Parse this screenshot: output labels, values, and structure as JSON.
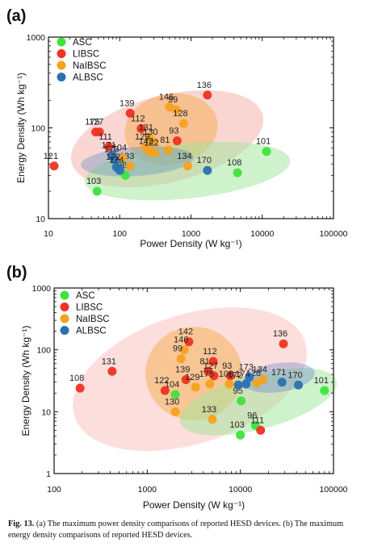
{
  "chart_data": [
    {
      "panel": "(a)",
      "type": "scatter",
      "xlabel": "Power Density (W kg⁻¹)",
      "ylabel": "Energy Density (Wh kg⁻¹)",
      "xscale": "log",
      "yscale": "log",
      "xlim": [
        10,
        100000
      ],
      "ylim": [
        10,
        1000
      ],
      "x_ticks": [
        "10",
        "100",
        "1000",
        "10000",
        "100000"
      ],
      "y_ticks": [
        "10",
        "100",
        "1000"
      ],
      "legend_position": "top-left",
      "series": [
        {
          "name": "ASC",
          "color": "#3ee23e",
          "points": [
            {
              "x": 11500,
              "y": 55,
              "label": "101"
            },
            {
              "x": 4500,
              "y": 32,
              "label": "108"
            },
            {
              "x": 48,
              "y": 20,
              "label": "103"
            },
            {
              "x": 120,
              "y": 30,
              "label": "96"
            }
          ]
        },
        {
          "name": "LIBSC",
          "color": "#ef3322",
          "points": [
            {
              "x": 1700,
              "y": 230,
              "label": "136"
            },
            {
              "x": 140,
              "y": 145,
              "label": "139"
            },
            {
              "x": 12,
              "y": 38,
              "label": "121"
            },
            {
              "x": 46,
              "y": 90,
              "label": "175"
            },
            {
              "x": 52,
              "y": 90,
              "label": "127"
            },
            {
              "x": 200,
              "y": 98,
              "label": "112"
            },
            {
              "x": 640,
              "y": 72,
              "label": "93"
            },
            {
              "x": 70,
              "y": 62,
              "label": "111"
            }
          ]
        },
        {
          "name": "NaIBSC",
          "color": "#f6a11e",
          "points": [
            {
              "x": 500,
              "y": 170,
              "label": "146"
            },
            {
              "x": 620,
              "y": 158,
              "label": "99"
            },
            {
              "x": 790,
              "y": 112,
              "label": "128"
            },
            {
              "x": 260,
              "y": 78,
              "label": "131"
            },
            {
              "x": 300,
              "y": 70,
              "label": "130"
            },
            {
              "x": 230,
              "y": 62,
              "label": "129"
            },
            {
              "x": 480,
              "y": 57,
              "label": "81"
            },
            {
              "x": 260,
              "y": 55,
              "label": "142"
            },
            {
              "x": 310,
              "y": 53,
              "label": "122"
            },
            {
              "x": 900,
              "y": 38,
              "label": "134"
            },
            {
              "x": 140,
              "y": 38,
              "label": "133"
            },
            {
              "x": 110,
              "y": 47,
              "label": "104"
            }
          ]
        },
        {
          "name": "ALBSC",
          "color": "#2a70b0",
          "points": [
            {
              "x": 1700,
              "y": 34,
              "label": "170"
            },
            {
              "x": 78,
              "y": 50,
              "label": "171"
            },
            {
              "x": 85,
              "y": 45,
              "label": "173"
            },
            {
              "x": 90,
              "y": 37,
              "label": "172"
            },
            {
              "x": 100,
              "y": 34,
              "label": "174"
            }
          ]
        }
      ]
    },
    {
      "panel": "(b)",
      "type": "scatter",
      "xlabel": "Power Density (W kg⁻¹)",
      "ylabel": "Energy Density (Wh kg⁻¹)",
      "xscale": "log",
      "yscale": "log",
      "xlim": [
        100,
        100000
      ],
      "ylim": [
        1,
        1000
      ],
      "x_ticks": [
        "100",
        "1000",
        "10000",
        "100000"
      ],
      "y_ticks": [
        "1",
        "10",
        "100",
        "1000"
      ],
      "legend_position": "top-left",
      "series": [
        {
          "name": "ASC",
          "color": "#3ee23e",
          "points": [
            {
              "x": 80000,
              "y": 22,
              "label": "101"
            },
            {
              "x": 10200,
              "y": 15,
              "label": "95"
            },
            {
              "x": 14500,
              "y": 6,
              "label": "96"
            },
            {
              "x": 10000,
              "y": 4.2,
              "label": "103"
            },
            {
              "x": 2000,
              "y": 19,
              "label": "104"
            }
          ]
        },
        {
          "name": "LIBSC",
          "color": "#ef3322",
          "points": [
            {
              "x": 29000,
              "y": 125,
              "label": "136"
            },
            {
              "x": 2800,
              "y": 135,
              "label": "142"
            },
            {
              "x": 420,
              "y": 45,
              "label": "131"
            },
            {
              "x": 190,
              "y": 24,
              "label": "108"
            },
            {
              "x": 1550,
              "y": 22,
              "label": "122"
            },
            {
              "x": 5100,
              "y": 65,
              "label": "112"
            },
            {
              "x": 4500,
              "y": 45,
              "label": "81"
            },
            {
              "x": 5200,
              "y": 38,
              "label": "127"
            },
            {
              "x": 7800,
              "y": 38,
              "label": "93"
            },
            {
              "x": 2600,
              "y": 33,
              "label": "139"
            },
            {
              "x": 16500,
              "y": 5,
              "label": "111"
            }
          ]
        },
        {
          "name": "NaIBSC",
          "color": "#f6a11e",
          "points": [
            {
              "x": 2500,
              "y": 100,
              "label": "146"
            },
            {
              "x": 2300,
              "y": 72,
              "label": "99"
            },
            {
              "x": 3300,
              "y": 25,
              "label": "129"
            },
            {
              "x": 2000,
              "y": 10,
              "label": "130"
            },
            {
              "x": 5000,
              "y": 7.5,
              "label": "133"
            },
            {
              "x": 15000,
              "y": 29,
              "label": "128"
            },
            {
              "x": 17500,
              "y": 33,
              "label": "134"
            },
            {
              "x": 4700,
              "y": 28,
              "label": "175"
            },
            {
              "x": 7600,
              "y": 28,
              "label": "108"
            }
          ]
        },
        {
          "name": "ALBSC",
          "color": "#2a70b0",
          "points": [
            {
              "x": 12500,
              "y": 36,
              "label": "173"
            },
            {
              "x": 11500,
              "y": 28,
              "label": "174"
            },
            {
              "x": 9500,
              "y": 27,
              "label": "172"
            },
            {
              "x": 42000,
              "y": 27,
              "label": "170"
            },
            {
              "x": 28000,
              "y": 30,
              "label": "171"
            }
          ]
        }
      ]
    }
  ],
  "caption": {
    "prefix": "Fig. 13.",
    "text": " (a) The maximum power density comparisons of reported HESD devices. (b) The maximum energy density comparisons of reported HESD devices."
  }
}
